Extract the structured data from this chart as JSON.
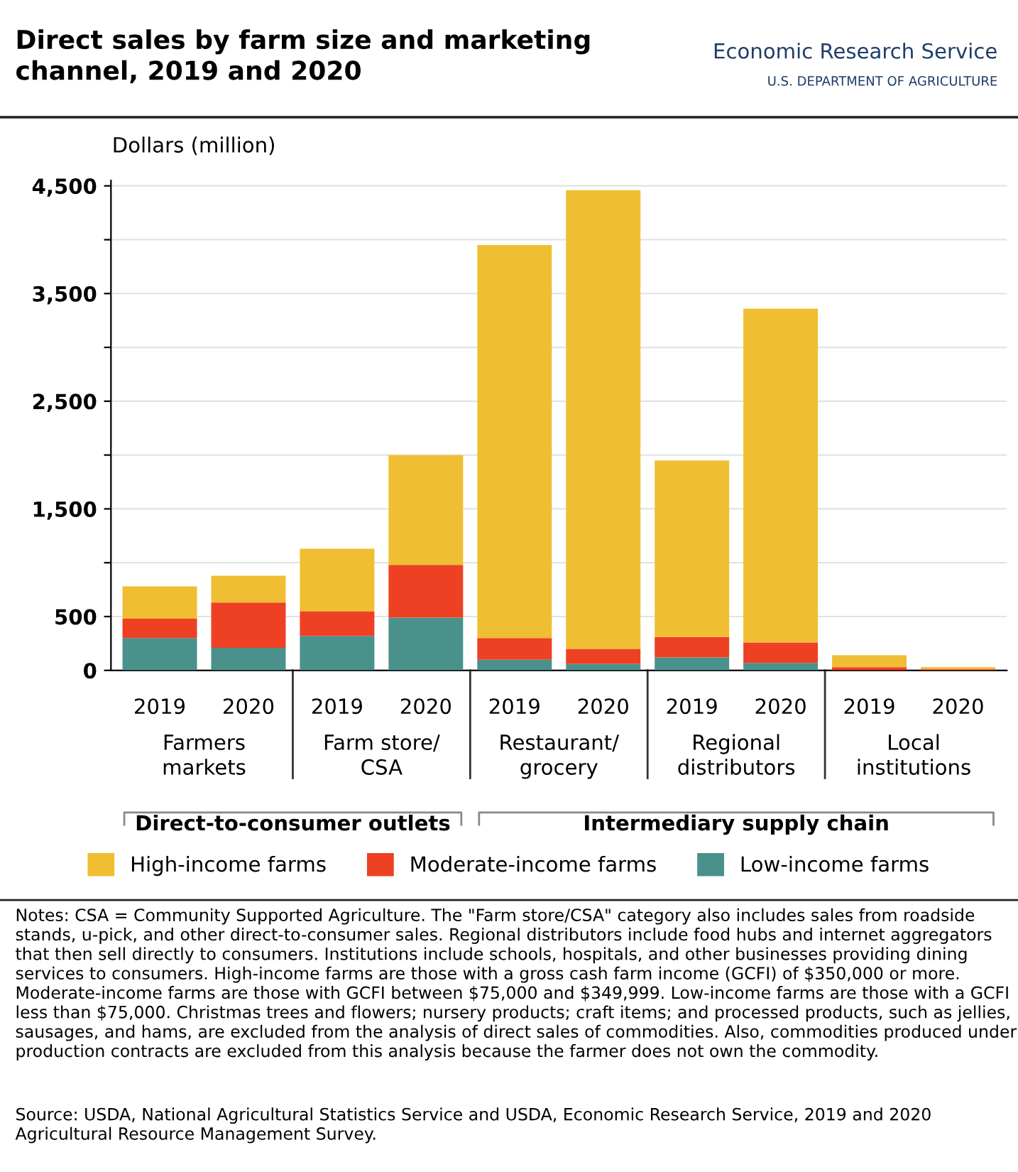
{
  "chart_data": {
    "type": "bar",
    "stacked": true,
    "title": "Direct sales by farm size and marketing\nchannel, 2019 and 2020",
    "ylabel": "Dollars (million)",
    "categories": [
      "2019",
      "2020",
      "2019",
      "2020",
      "2019",
      "2020",
      "2019",
      "2020",
      "2019",
      "2020"
    ],
    "series": [
      {
        "name": "Low-income farms",
        "color": "#4a918c",
        "values": [
          300,
          210,
          320,
          490,
          100,
          60,
          120,
          70,
          0,
          0
        ]
      },
      {
        "name": "Moderate-income farms",
        "color": "#ee4023",
        "values": [
          180,
          420,
          230,
          490,
          200,
          140,
          190,
          190,
          30,
          10
        ]
      },
      {
        "name": "High-income farms",
        "color": "#f0be32",
        "values": [
          300,
          250,
          580,
          1020,
          3650,
          4260,
          1640,
          3100,
          110,
          20
        ]
      }
    ],
    "ylim": [
      0,
      4550
    ],
    "yticks": [
      0,
      500,
      {
        "value": 1000,
        "label": null
      },
      {
        "value": 1500,
        "label": "1,500"
      },
      {
        "value": 2000,
        "label": null
      },
      {
        "value": 2500,
        "label": "2,500"
      },
      {
        "value": 3000,
        "label": null
      },
      {
        "value": 3500,
        "label": "3,500"
      },
      {
        "value": 4000,
        "label": null
      },
      {
        "value": 4500,
        "label": "4,500"
      }
    ],
    "grid": "y",
    "legend": "bottom",
    "annotations": [
      "Farmers\nmarkets",
      "Farm store/\nCSA",
      "Restaurant/\ngrocery",
      "Regional\ndistributors",
      "Local\ninstitutions",
      "Direct-to-consumer outlets",
      "Intermediary supply chain",
      "Notes: CSA = Community Supported Agriculture. The \"Farm store/CSA\" category also includes sales from roadside stands, u-pick, and other direct-to-consumer sales. Regional distributors include food hubs and internet aggregators that then sell directly to consumers. Institutions include schools, hospitals, and other businesses providing dining services to consumers. High-income farms are those with a gross cash farm income (GCFI) of $350,000 or more. Moderate-income farms are those with GCFI between $75,000 and $349,999. Low-income farms are those with a GCFI less than $75,000. Christmas trees and flowers; nursery products; craft items; and processed products, such as jellies, sausages, and hams, are excluded from the analysis of direct sales of commodities. Also, commodities produced under production contracts are excluded from this analysis because the farmer does not own the commodity.",
      "Source: USDA, National Agricultural Statistics Service and USDA, Economic Research Service, 2019 and 2020 Agricultural Resource Management Survey.",
      "Economic Research Service",
      "U.S. DEPARTMENT OF AGRICULTURE"
    ]
  }
}
